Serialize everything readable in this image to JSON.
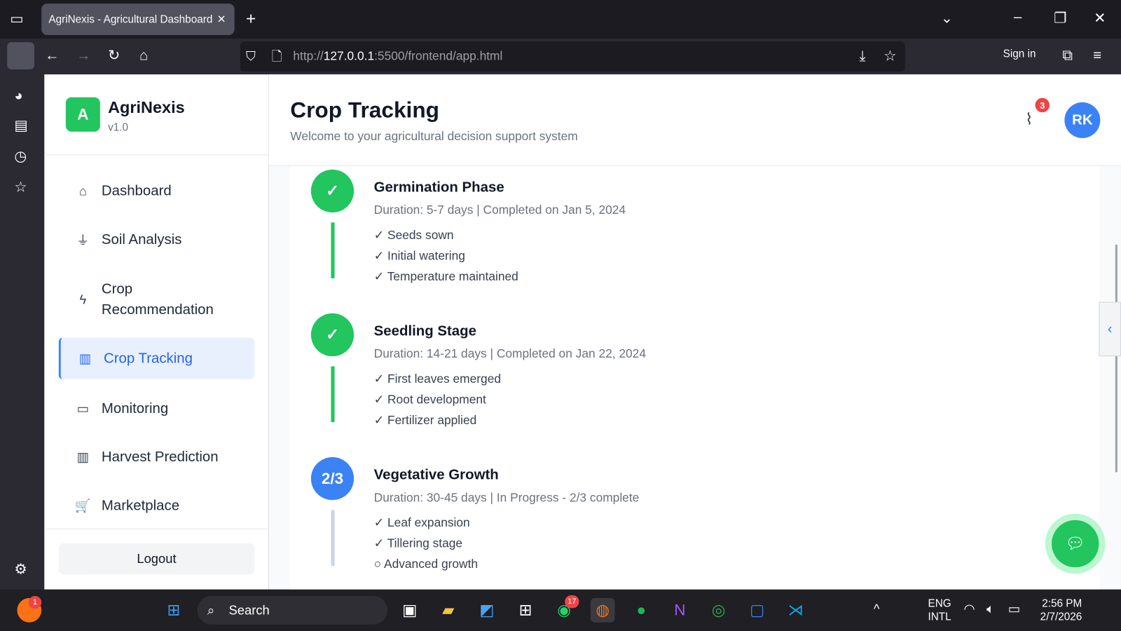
{
  "browser": {
    "tab_title": "AgriNexis - Agricultural Dashboard",
    "url_prefix": "http://",
    "url_host": "127.0.0.1",
    "url_rest": ":5500/frontend/app.html",
    "sign_in": "Sign in"
  },
  "app": {
    "name": "AgriNexis",
    "version": "v1.0",
    "logo_letter": "A"
  },
  "sidebar": {
    "items": [
      {
        "label": "Dashboard",
        "icon": "home-icon"
      },
      {
        "label": "Soil Analysis",
        "icon": "soil-icon"
      },
      {
        "label": "Crop Recommendation",
        "icon": "bolt-icon"
      },
      {
        "label": "Crop Tracking",
        "icon": "bar-chart-icon",
        "active": true
      },
      {
        "label": "Monitoring",
        "icon": "video-icon"
      },
      {
        "label": "Harvest Prediction",
        "icon": "bar-chart-icon"
      },
      {
        "label": "Marketplace",
        "icon": "cart-icon"
      }
    ],
    "logout": "Logout"
  },
  "header": {
    "title": "Crop Tracking",
    "subtitle": "Welcome to your agricultural decision support system",
    "notification_count": "3",
    "avatar": "RK"
  },
  "stages": [
    {
      "title": "Germination Phase",
      "marker": "✓",
      "status": "completed",
      "details": "Duration: 5-7 days | Completed on Jan 5, 2024",
      "tasks": [
        "✓ Seeds sown",
        "✓ Initial watering",
        "✓ Temperature maintained"
      ]
    },
    {
      "title": "Seedling Stage",
      "marker": "✓",
      "status": "completed",
      "details": "Duration: 14-21 days | Completed on Jan 22, 2024",
      "tasks": [
        "✓ First leaves emerged",
        "✓ Root development",
        "✓ Fertilizer applied"
      ]
    },
    {
      "title": "Vegetative Growth",
      "marker": "2/3",
      "status": "in-progress",
      "details": "Duration: 30-45 days | In Progress - 2/3 complete",
      "tasks": [
        "✓ Leaf expansion",
        "✓ Tillering stage",
        "○ Advanced growth"
      ]
    }
  ],
  "colors": {
    "green": "#22c55e",
    "blue": "#3b82f6",
    "active_bg": "#e8f0fe"
  },
  "taskbar": {
    "search": "Search",
    "lang1": "ENG",
    "lang2": "INTL",
    "time": "2:56 PM",
    "date": "2/7/2026",
    "whatsapp_badge": "17",
    "firefox_badge": "1"
  }
}
